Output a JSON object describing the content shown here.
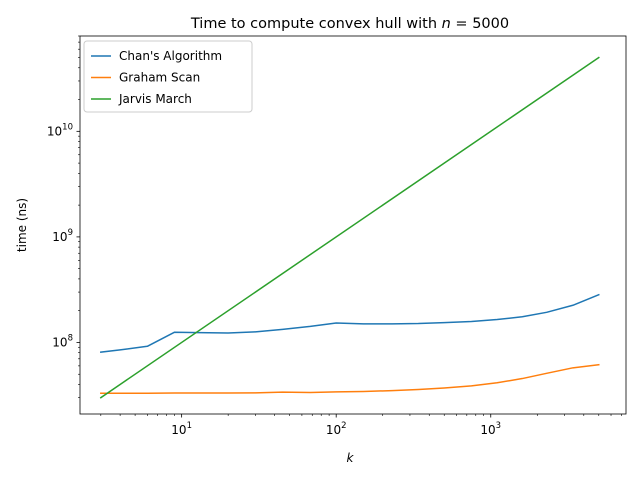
{
  "chart_data": {
    "type": "line",
    "title": {
      "prefix": "Time to compute convex hull with ",
      "var": "n",
      "suffix": " = 5000"
    },
    "xlabel": "k",
    "ylabel": "time (ns)",
    "xscale": "log",
    "yscale": "log",
    "xlim": [
      2.2,
      7500
    ],
    "ylim": [
      21000000,
      80000000000
    ],
    "xticks": [
      {
        "value": 10,
        "base": "10",
        "exp": "1"
      },
      {
        "value": 100,
        "base": "10",
        "exp": "2"
      },
      {
        "value": 1000,
        "base": "10",
        "exp": "3"
      }
    ],
    "yticks": [
      {
        "value": 100000000,
        "base": "10",
        "exp": "8"
      },
      {
        "value": 1000000000,
        "base": "10",
        "exp": "9"
      },
      {
        "value": 10000000000,
        "base": "10",
        "exp": "10"
      }
    ],
    "legend_position": "upper-left",
    "series": [
      {
        "name": "Chan's Algorithm",
        "color": "#1f77b4",
        "x": [
          3,
          4,
          6,
          9,
          13,
          20,
          30,
          45,
          68,
          100,
          150,
          230,
          340,
          500,
          750,
          1100,
          1600,
          2300,
          3400,
          5000
        ],
        "y": [
          81000000,
          85000000,
          92000000,
          125000000,
          124000000,
          123000000,
          126000000,
          133000000,
          142000000,
          153000000,
          150000000,
          150000000,
          151000000,
          154000000,
          158000000,
          165000000,
          175000000,
          193000000,
          225000000,
          283000000
        ]
      },
      {
        "name": "Graham Scan",
        "color": "#ff7f0e",
        "x": [
          3,
          4,
          6,
          9,
          13,
          20,
          30,
          45,
          68,
          100,
          150,
          230,
          340,
          500,
          750,
          1100,
          1600,
          2300,
          3400,
          5000
        ],
        "y": [
          33000000,
          33000000,
          33000000,
          33200000,
          33200000,
          33200000,
          33300000,
          33800000,
          33600000,
          34000000,
          34300000,
          35000000,
          35800000,
          37000000,
          38800000,
          41500000,
          45500000,
          51000000,
          57500000,
          61500000
        ]
      },
      {
        "name": "Jarvis March",
        "color": "#2ca02c",
        "x": [
          3,
          5000
        ],
        "y": [
          30000000,
          50000000000
        ]
      }
    ]
  }
}
